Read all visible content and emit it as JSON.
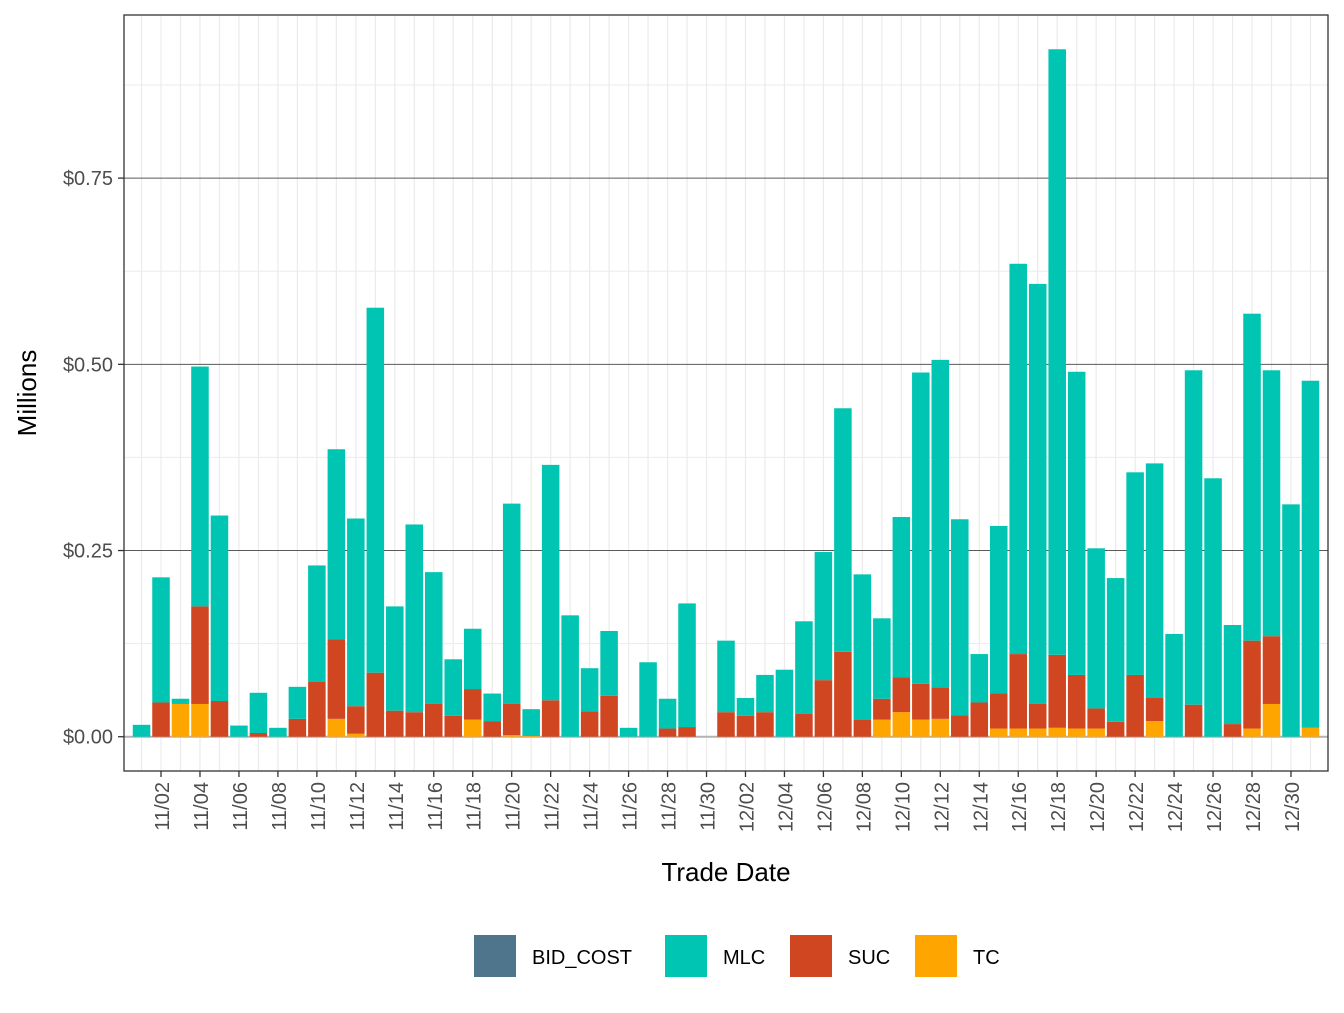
{
  "chart_data": {
    "type": "bar",
    "stacked": true,
    "xlabel": "Trade Date",
    "ylabel": "Millions",
    "ylim": [
      -0.046,
      0.969
    ],
    "y_ticks": [
      0,
      0.25,
      0.5,
      0.75
    ],
    "y_tick_labels": [
      "$0.00",
      "$0.25",
      "$0.50",
      "$0.75"
    ],
    "grid": true,
    "legend_position": "bottom",
    "categories": [
      "11/01",
      "11/02",
      "11/03",
      "11/04",
      "11/05",
      "11/06",
      "11/07",
      "11/08",
      "11/09",
      "11/10",
      "11/11",
      "11/12",
      "11/13",
      "11/14",
      "11/15",
      "11/16",
      "11/17",
      "11/18",
      "11/19",
      "11/20",
      "11/21",
      "11/22",
      "11/23",
      "11/24",
      "11/25",
      "11/26",
      "11/27",
      "11/28",
      "11/29",
      "11/30",
      "12/01",
      "12/02",
      "12/03",
      "12/04",
      "12/05",
      "12/06",
      "12/07",
      "12/08",
      "12/09",
      "12/10",
      "12/11",
      "12/12",
      "12/13",
      "12/14",
      "12/15",
      "12/16",
      "12/17",
      "12/18",
      "12/19",
      "12/20",
      "12/21",
      "12/22",
      "12/23",
      "12/24",
      "12/25",
      "12/26",
      "12/27",
      "12/28",
      "12/29",
      "12/30",
      "12/31"
    ],
    "x_tick_labels": [
      "11/02",
      "11/04",
      "11/06",
      "11/08",
      "11/10",
      "11/12",
      "11/14",
      "11/16",
      "11/18",
      "11/20",
      "11/22",
      "11/24",
      "11/26",
      "11/28",
      "11/30",
      "12/02",
      "12/04",
      "12/06",
      "12/08",
      "12/10",
      "12/12",
      "12/14",
      "12/16",
      "12/18",
      "12/20",
      "12/22",
      "12/24",
      "12/26",
      "12/28",
      "12/30"
    ],
    "series": [
      {
        "name": "TC",
        "color": "#FFA500",
        "values": [
          0,
          0,
          0.044,
          0.044,
          0,
          0,
          0,
          0,
          0,
          0,
          0.024,
          0.004,
          0,
          0,
          0,
          0,
          0,
          0.023,
          0,
          0.002,
          0.001,
          0,
          0,
          0,
          0,
          0,
          0,
          0,
          0,
          0,
          0,
          0,
          0,
          0,
          0,
          0,
          0,
          0,
          0.023,
          0.033,
          0.023,
          0.024,
          0,
          0,
          0.011,
          0.011,
          0.011,
          0.012,
          0.011,
          0.011,
          0,
          0,
          0.021,
          0,
          0,
          0,
          0,
          0.011,
          0.044,
          0,
          0.012
        ]
      },
      {
        "name": "SUC",
        "color": "#D04621",
        "values": [
          0,
          0.046,
          0,
          0.131,
          0.048,
          0,
          0.005,
          0,
          0.024,
          0.074,
          0.107,
          0.037,
          0.086,
          0.035,
          0.033,
          0.044,
          0.028,
          0.041,
          0.021,
          0.042,
          0,
          0.049,
          0,
          0.034,
          0.055,
          0,
          0,
          0.011,
          0.013,
          0,
          0.033,
          0.028,
          0.033,
          0,
          0.031,
          0.076,
          0.114,
          0.023,
          0.028,
          0.047,
          0.048,
          0.042,
          0.029,
          0.046,
          0.047,
          0.1,
          0.033,
          0.098,
          0.072,
          0.027,
          0.02,
          0.083,
          0.031,
          0,
          0.043,
          0,
          0.017,
          0.118,
          0.091,
          0,
          0
        ]
      },
      {
        "name": "MLC",
        "color": "#00C5B2",
        "values": [
          0.016,
          0.168,
          0.007,
          0.322,
          0.249,
          0.015,
          0.054,
          0.012,
          0.043,
          0.156,
          0.255,
          0.252,
          0.49,
          0.14,
          0.252,
          0.177,
          0.076,
          0.081,
          0.037,
          0.269,
          0.036,
          0.316,
          0.163,
          0.058,
          0.087,
          0.012,
          0.1,
          0.04,
          0.166,
          0,
          0.096,
          0.024,
          0.05,
          0.09,
          0.124,
          0.172,
          0.327,
          0.195,
          0.108,
          0.215,
          0.418,
          0.44,
          0.263,
          0.065,
          0.225,
          0.524,
          0.564,
          0.813,
          0.407,
          0.215,
          0.193,
          0.272,
          0.315,
          0.138,
          0.449,
          0.347,
          0.133,
          0.439,
          0.357,
          0.312,
          0.466
        ]
      },
      {
        "name": "BID_COST",
        "color": "#4E758B",
        "values": [
          0,
          0,
          0,
          0,
          0,
          0,
          0,
          0,
          0,
          0,
          0,
          0,
          0,
          0,
          0,
          0,
          0,
          0,
          0,
          0,
          0,
          0,
          0,
          0,
          0,
          0,
          0,
          0,
          0,
          0,
          0,
          0,
          0,
          0,
          0,
          0,
          0,
          0,
          0,
          0,
          0,
          0,
          0,
          0,
          0,
          0,
          0,
          0,
          0,
          0,
          0,
          0,
          0,
          0,
          0,
          0,
          0,
          0,
          0,
          0,
          0
        ]
      }
    ],
    "legend": [
      {
        "label": "BID_COST",
        "color": "#4E758B"
      },
      {
        "label": "MLC",
        "color": "#00C5B2"
      },
      {
        "label": "SUC",
        "color": "#D04621"
      },
      {
        "label": "TC",
        "color": "#FFA500"
      }
    ]
  }
}
